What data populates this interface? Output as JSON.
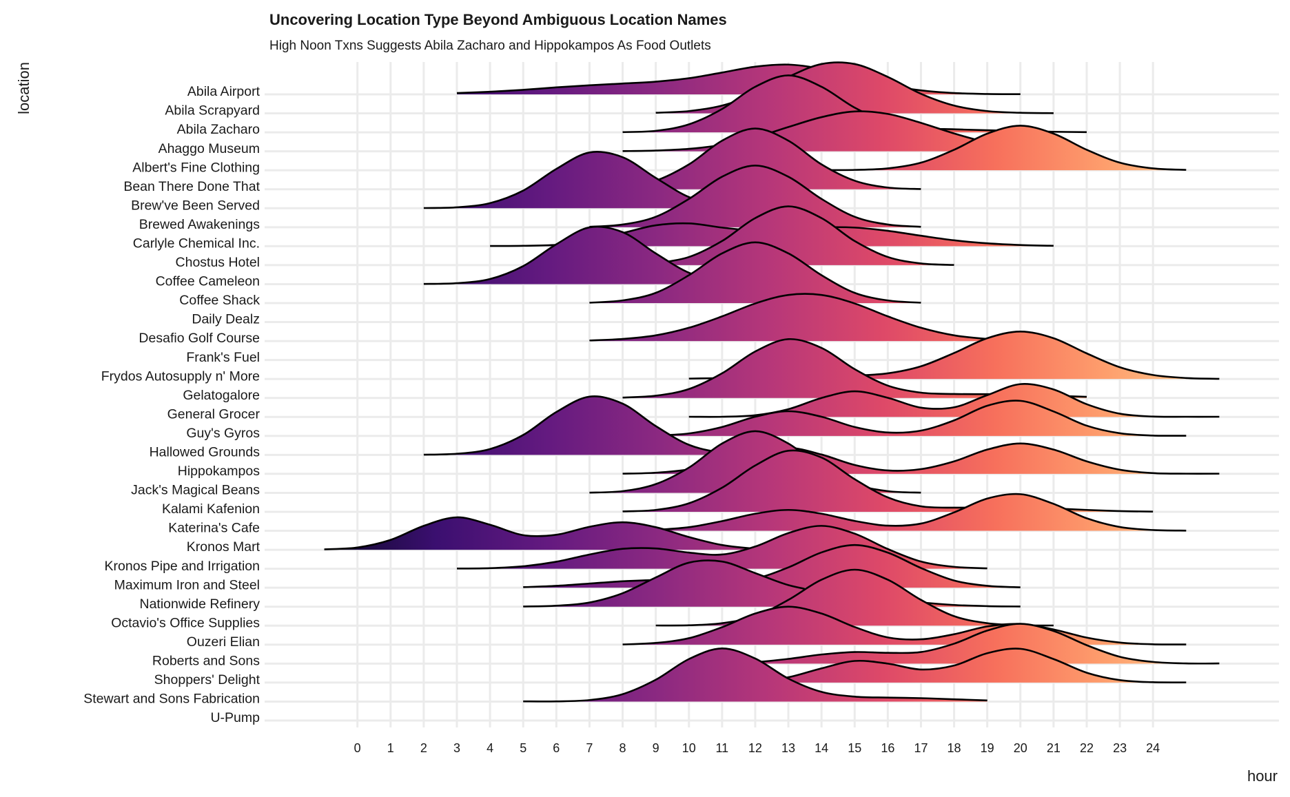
{
  "chart_data": {
    "type": "ridgeline",
    "title": "Uncovering Location Type Beyond Ambiguous Location Names",
    "subtitle": "High Noon Txns Suggests Abila Zacharo and Hippokampos As Food Outlets",
    "x_label": "hour",
    "y_label": "location",
    "xlim": [
      -2.8,
      27.8
    ],
    "xticks": [
      0,
      1,
      2,
      3,
      4,
      5,
      6,
      7,
      8,
      9,
      10,
      11,
      12,
      13,
      14,
      15,
      16,
      17,
      18,
      19,
      20,
      21,
      22,
      23,
      24
    ],
    "grid": true,
    "line_color": "#000000",
    "palette": [
      "#0d0829",
      "#3b0f70",
      "#641a80",
      "#8c2981",
      "#b73779",
      "#de4968",
      "#f7705c",
      "#fe9f6d",
      "#fecf92"
    ],
    "x": [
      -1,
      0,
      1,
      2,
      3,
      4,
      5,
      6,
      7,
      8,
      9,
      10,
      11,
      12,
      13,
      14,
      15,
      16,
      17,
      18,
      19,
      20,
      21,
      22,
      23,
      24,
      25,
      26
    ],
    "series": [
      {
        "name": "Abila Airport",
        "values": [
          null,
          null,
          null,
          null,
          0.07,
          0.14,
          0.24,
          0.37,
          0.48,
          0.57,
          0.67,
          0.85,
          1.15,
          1.46,
          1.57,
          1.35,
          0.93,
          0.49,
          0.21,
          0.07,
          0.02,
          0.01,
          null,
          null,
          null,
          null,
          null,
          null
        ]
      },
      {
        "name": "Abila Scrapyard",
        "values": [
          null,
          null,
          null,
          null,
          null,
          null,
          null,
          null,
          null,
          null,
          0.03,
          0.12,
          0.41,
          1.03,
          1.92,
          2.6,
          2.6,
          1.92,
          1.03,
          0.41,
          0.12,
          0.03,
          0.01,
          null,
          null,
          null,
          null,
          null
        ]
      },
      {
        "name": "Abila Zacharo",
        "values": [
          null,
          null,
          null,
          null,
          null,
          null,
          null,
          null,
          null,
          0.01,
          0.08,
          0.42,
          1.23,
          2.4,
          3.0,
          2.4,
          1.3,
          0.53,
          0.23,
          0.16,
          0.11,
          0.07,
          0.03,
          0.01,
          null,
          null,
          null,
          null
        ]
      },
      {
        "name": "Ahaggo Museum",
        "values": [
          null,
          null,
          null,
          null,
          null,
          null,
          null,
          null,
          null,
          0.01,
          0.04,
          0.13,
          0.34,
          0.73,
          1.28,
          1.8,
          2.1,
          1.97,
          1.5,
          0.94,
          0.47,
          0.19,
          0.06,
          null,
          null,
          null,
          null,
          null
        ]
      },
      {
        "name": "Albert's Fine Clothing",
        "values": [
          null,
          null,
          null,
          null,
          null,
          null,
          null,
          null,
          null,
          null,
          null,
          null,
          null,
          null,
          0.01,
          0.01,
          0.02,
          0.1,
          0.4,
          1.08,
          1.93,
          2.35,
          1.93,
          1.08,
          0.4,
          0.1,
          0.02,
          null
        ]
      },
      {
        "name": "Bean There Done That",
        "values": [
          null,
          null,
          null,
          null,
          null,
          null,
          null,
          null,
          0.01,
          0.09,
          0.45,
          1.31,
          2.56,
          3.2,
          2.56,
          1.31,
          0.45,
          0.09,
          0.01,
          null,
          null,
          null,
          null,
          null,
          null,
          null,
          null,
          null
        ]
      },
      {
        "name": "Brew've Been Served",
        "values": [
          null,
          null,
          null,
          0.01,
          0.05,
          0.27,
          0.93,
          2.07,
          2.94,
          2.69,
          1.6,
          0.59,
          0.14,
          0.02,
          null,
          null,
          null,
          null,
          null,
          null,
          null,
          null,
          null,
          null,
          null,
          null,
          null,
          null
        ]
      },
      {
        "name": "Brewed Awakenings",
        "values": [
          null,
          null,
          null,
          null,
          null,
          null,
          null,
          null,
          0.02,
          0.14,
          0.55,
          1.49,
          2.66,
          3.25,
          2.66,
          1.49,
          0.55,
          0.14,
          0.02,
          null,
          null,
          null,
          null,
          null,
          null,
          null,
          null,
          null
        ]
      },
      {
        "name": "Carlyle Chemical Inc.",
        "values": [
          null,
          null,
          null,
          null,
          null,
          0.01,
          0.02,
          0.07,
          0.27,
          0.69,
          1.1,
          1.2,
          0.98,
          0.82,
          0.88,
          0.99,
          0.98,
          0.81,
          0.55,
          0.31,
          0.15,
          0.06,
          0.02,
          null,
          null,
          null,
          null,
          null
        ]
      },
      {
        "name": "Chostus Hotel",
        "values": [
          null,
          null,
          null,
          null,
          null,
          null,
          null,
          null,
          null,
          null,
          0.09,
          0.43,
          1.27,
          2.48,
          3.1,
          2.48,
          1.27,
          0.43,
          0.09,
          0.01,
          null,
          null,
          null,
          null,
          null,
          null,
          null,
          null
        ]
      },
      {
        "name": "Coffee Cameleon",
        "values": [
          null,
          null,
          null,
          0.01,
          0.05,
          0.27,
          0.95,
          2.1,
          2.99,
          2.74,
          1.62,
          0.6,
          0.14,
          0.02,
          null,
          null,
          null,
          null,
          null,
          null,
          null,
          null,
          null,
          null,
          null,
          null,
          null,
          null
        ]
      },
      {
        "name": "Coffee Shack",
        "values": [
          null,
          null,
          null,
          null,
          null,
          null,
          null,
          null,
          0.02,
          0.14,
          0.54,
          1.47,
          2.62,
          3.2,
          2.62,
          1.47,
          0.54,
          0.14,
          0.02,
          null,
          null,
          null,
          null,
          null,
          null,
          null,
          null,
          null
        ]
      },
      {
        "name": "Daily Dealz",
        "values": [
          null,
          null,
          null,
          null,
          null,
          null,
          null,
          null,
          null,
          null,
          null,
          null,
          null,
          null,
          null,
          null,
          null,
          null,
          null,
          null,
          null,
          null,
          null,
          null,
          null,
          null,
          null,
          null
        ]
      },
      {
        "name": "Desafio Golf Course",
        "values": [
          null,
          null,
          null,
          null,
          null,
          null,
          null,
          null,
          0.03,
          0.11,
          0.3,
          0.7,
          1.3,
          1.98,
          2.43,
          2.43,
          1.98,
          1.3,
          0.7,
          0.3,
          0.11,
          0.03,
          null,
          null,
          null,
          null,
          null,
          null
        ]
      },
      {
        "name": "Frank's Fuel",
        "values": [
          null,
          null,
          null,
          null,
          null,
          null,
          null,
          null,
          null,
          null,
          null,
          null,
          null,
          null,
          null,
          null,
          null,
          null,
          null,
          null,
          null,
          null,
          null,
          null,
          null,
          null,
          null,
          null
        ]
      },
      {
        "name": "Frydos Autosupply n' More",
        "values": [
          null,
          null,
          null,
          null,
          null,
          null,
          null,
          null,
          null,
          null,
          null,
          0.02,
          0.05,
          0.09,
          0.13,
          0.16,
          0.18,
          0.3,
          0.67,
          1.37,
          2.15,
          2.5,
          2.15,
          1.35,
          0.62,
          0.21,
          0.05,
          0.01
        ]
      },
      {
        "name": "Gelatogalore",
        "values": [
          null,
          null,
          null,
          null,
          null,
          null,
          null,
          null,
          null,
          0.02,
          0.12,
          0.47,
          1.3,
          2.45,
          3.1,
          2.64,
          1.52,
          0.65,
          0.28,
          0.21,
          0.2,
          0.18,
          0.12,
          0.06,
          null,
          null,
          null,
          null
        ]
      },
      {
        "name": "General Grocer",
        "values": [
          null,
          null,
          null,
          null,
          null,
          null,
          null,
          null,
          null,
          null,
          null,
          0.01,
          0.01,
          0.09,
          0.41,
          1.0,
          1.35,
          1.01,
          0.49,
          0.51,
          1.15,
          1.73,
          1.45,
          0.67,
          0.17,
          0.02,
          0.01,
          0.01
        ]
      },
      {
        "name": "Guy's Gyros",
        "values": [
          null,
          null,
          null,
          null,
          null,
          null,
          null,
          null,
          null,
          null,
          0.02,
          0.13,
          0.47,
          1.01,
          1.3,
          1.01,
          0.47,
          0.18,
          0.28,
          0.82,
          1.59,
          1.85,
          1.29,
          0.54,
          0.14,
          0.02,
          0.01,
          null
        ]
      },
      {
        "name": "Hallowed Grounds",
        "values": [
          null,
          null,
          null,
          0.01,
          0.06,
          0.31,
          1.05,
          2.26,
          3.07,
          2.7,
          1.52,
          0.53,
          0.12,
          0.02,
          null,
          null,
          null,
          null,
          null,
          null,
          null,
          null,
          null,
          null,
          null,
          null,
          null,
          null
        ]
      },
      {
        "name": "Hippokampos",
        "values": [
          null,
          null,
          null,
          null,
          null,
          null,
          null,
          null,
          null,
          0.01,
          0.06,
          0.24,
          0.68,
          1.21,
          1.39,
          1.02,
          0.47,
          0.18,
          0.25,
          0.66,
          1.28,
          1.6,
          1.28,
          0.66,
          0.22,
          0.04,
          0.01,
          0.01
        ]
      },
      {
        "name": "Jack's Magical Beans",
        "values": [
          null,
          null,
          null,
          null,
          null,
          null,
          null,
          null,
          0.01,
          0.09,
          0.46,
          1.33,
          2.6,
          3.25,
          2.6,
          1.33,
          0.46,
          0.09,
          0.01,
          null,
          null,
          null,
          null,
          null,
          null,
          null,
          null,
          null
        ]
      },
      {
        "name": "Kalami Kafenion",
        "values": [
          null,
          null,
          null,
          null,
          null,
          null,
          null,
          null,
          null,
          0.02,
          0.1,
          0.45,
          1.27,
          2.44,
          3.22,
          2.86,
          1.72,
          0.76,
          0.29,
          0.22,
          0.24,
          0.24,
          0.18,
          0.1,
          0.04,
          0.01,
          null,
          null
        ]
      },
      {
        "name": "Katerina's Cafe",
        "values": [
          null,
          null,
          null,
          null,
          null,
          null,
          null,
          null,
          null,
          null,
          0.05,
          0.19,
          0.51,
          0.9,
          1.1,
          0.9,
          0.52,
          0.27,
          0.38,
          0.97,
          1.7,
          1.93,
          1.42,
          0.66,
          0.2,
          0.04,
          0.01,
          null
        ]
      },
      {
        "name": "Kronos Mart",
        "values": [
          0.02,
          0.12,
          0.52,
          1.26,
          1.71,
          1.32,
          0.77,
          0.79,
          1.21,
          1.45,
          1.19,
          0.67,
          0.25,
          0.06,
          0.01,
          null,
          null,
          null,
          null,
          null,
          null,
          null,
          null,
          null,
          null,
          null,
          null,
          null
        ]
      },
      {
        "name": "Kronos Pipe and Irrigation",
        "values": [
          null,
          null,
          null,
          null,
          0.01,
          0.03,
          0.13,
          0.37,
          0.75,
          1.05,
          1.07,
          0.85,
          0.75,
          1.17,
          1.88,
          2.26,
          1.85,
          1.04,
          0.38,
          0.1,
          0.02,
          null,
          null,
          null,
          null,
          null,
          null,
          null
        ]
      },
      {
        "name": "Maximum Iron and Steel",
        "values": [
          null,
          null,
          null,
          null,
          null,
          null,
          0.03,
          0.1,
          0.22,
          0.34,
          0.4,
          0.36,
          0.32,
          0.48,
          1.07,
          1.86,
          2.25,
          1.85,
          1.04,
          0.38,
          0.1,
          0.02,
          null,
          null,
          null,
          null,
          null,
          null
        ]
      },
      {
        "name": "Nationwide Refinery",
        "values": [
          null,
          null,
          null,
          null,
          null,
          null,
          0.01,
          0.05,
          0.22,
          0.71,
          1.54,
          2.32,
          2.38,
          1.77,
          1.14,
          0.8,
          0.63,
          0.44,
          0.23,
          0.09,
          0.03,
          0.01,
          null,
          null,
          null,
          null,
          null,
          null
        ]
      },
      {
        "name": "Octavio's Office Supplies",
        "values": [
          null,
          null,
          null,
          null,
          null,
          null,
          null,
          null,
          null,
          null,
          0.01,
          0.02,
          0.13,
          0.5,
          1.36,
          2.42,
          2.95,
          2.42,
          1.36,
          0.5,
          0.13,
          0.02,
          0.01,
          null,
          null,
          null,
          null,
          null
        ]
      },
      {
        "name": "Ouzeri Elian",
        "values": [
          null,
          null,
          null,
          null,
          null,
          null,
          null,
          null,
          null,
          0.01,
          0.09,
          0.34,
          0.92,
          1.64,
          2.0,
          1.64,
          0.93,
          0.38,
          0.28,
          0.55,
          0.96,
          1.09,
          0.8,
          0.37,
          0.11,
          0.02,
          0.01,
          null
        ]
      },
      {
        "name": "Roberts and Sons",
        "values": [
          null,
          null,
          null,
          null,
          null,
          null,
          null,
          null,
          null,
          null,
          null,
          null,
          0.02,
          0.08,
          0.25,
          0.48,
          0.61,
          0.57,
          0.61,
          1.05,
          1.74,
          2.1,
          1.72,
          0.97,
          0.36,
          0.09,
          0.01,
          0.01
        ]
      },
      {
        "name": "Shoppers' Delight",
        "values": [
          null,
          null,
          null,
          null,
          null,
          null,
          null,
          null,
          null,
          null,
          null,
          null,
          null,
          0.06,
          0.28,
          0.75,
          1.14,
          1.0,
          0.69,
          0.9,
          1.55,
          1.78,
          1.24,
          0.52,
          0.13,
          0.02,
          0.01,
          null
        ]
      },
      {
        "name": "Stewart and Sons Fabrication",
        "values": [
          null,
          null,
          null,
          null,
          null,
          null,
          0.01,
          0.01,
          0.08,
          0.39,
          1.15,
          2.24,
          2.8,
          2.27,
          1.21,
          0.51,
          0.26,
          0.21,
          0.18,
          0.12,
          0.06,
          null,
          null,
          null,
          null,
          null,
          null,
          null
        ]
      },
      {
        "name": "U-Pump",
        "values": [
          null,
          null,
          null,
          null,
          null,
          null,
          null,
          null,
          null,
          null,
          null,
          null,
          null,
          null,
          null,
          null,
          null,
          null,
          null,
          null,
          null,
          null,
          null,
          null,
          null,
          null,
          null,
          null
        ]
      }
    ]
  }
}
